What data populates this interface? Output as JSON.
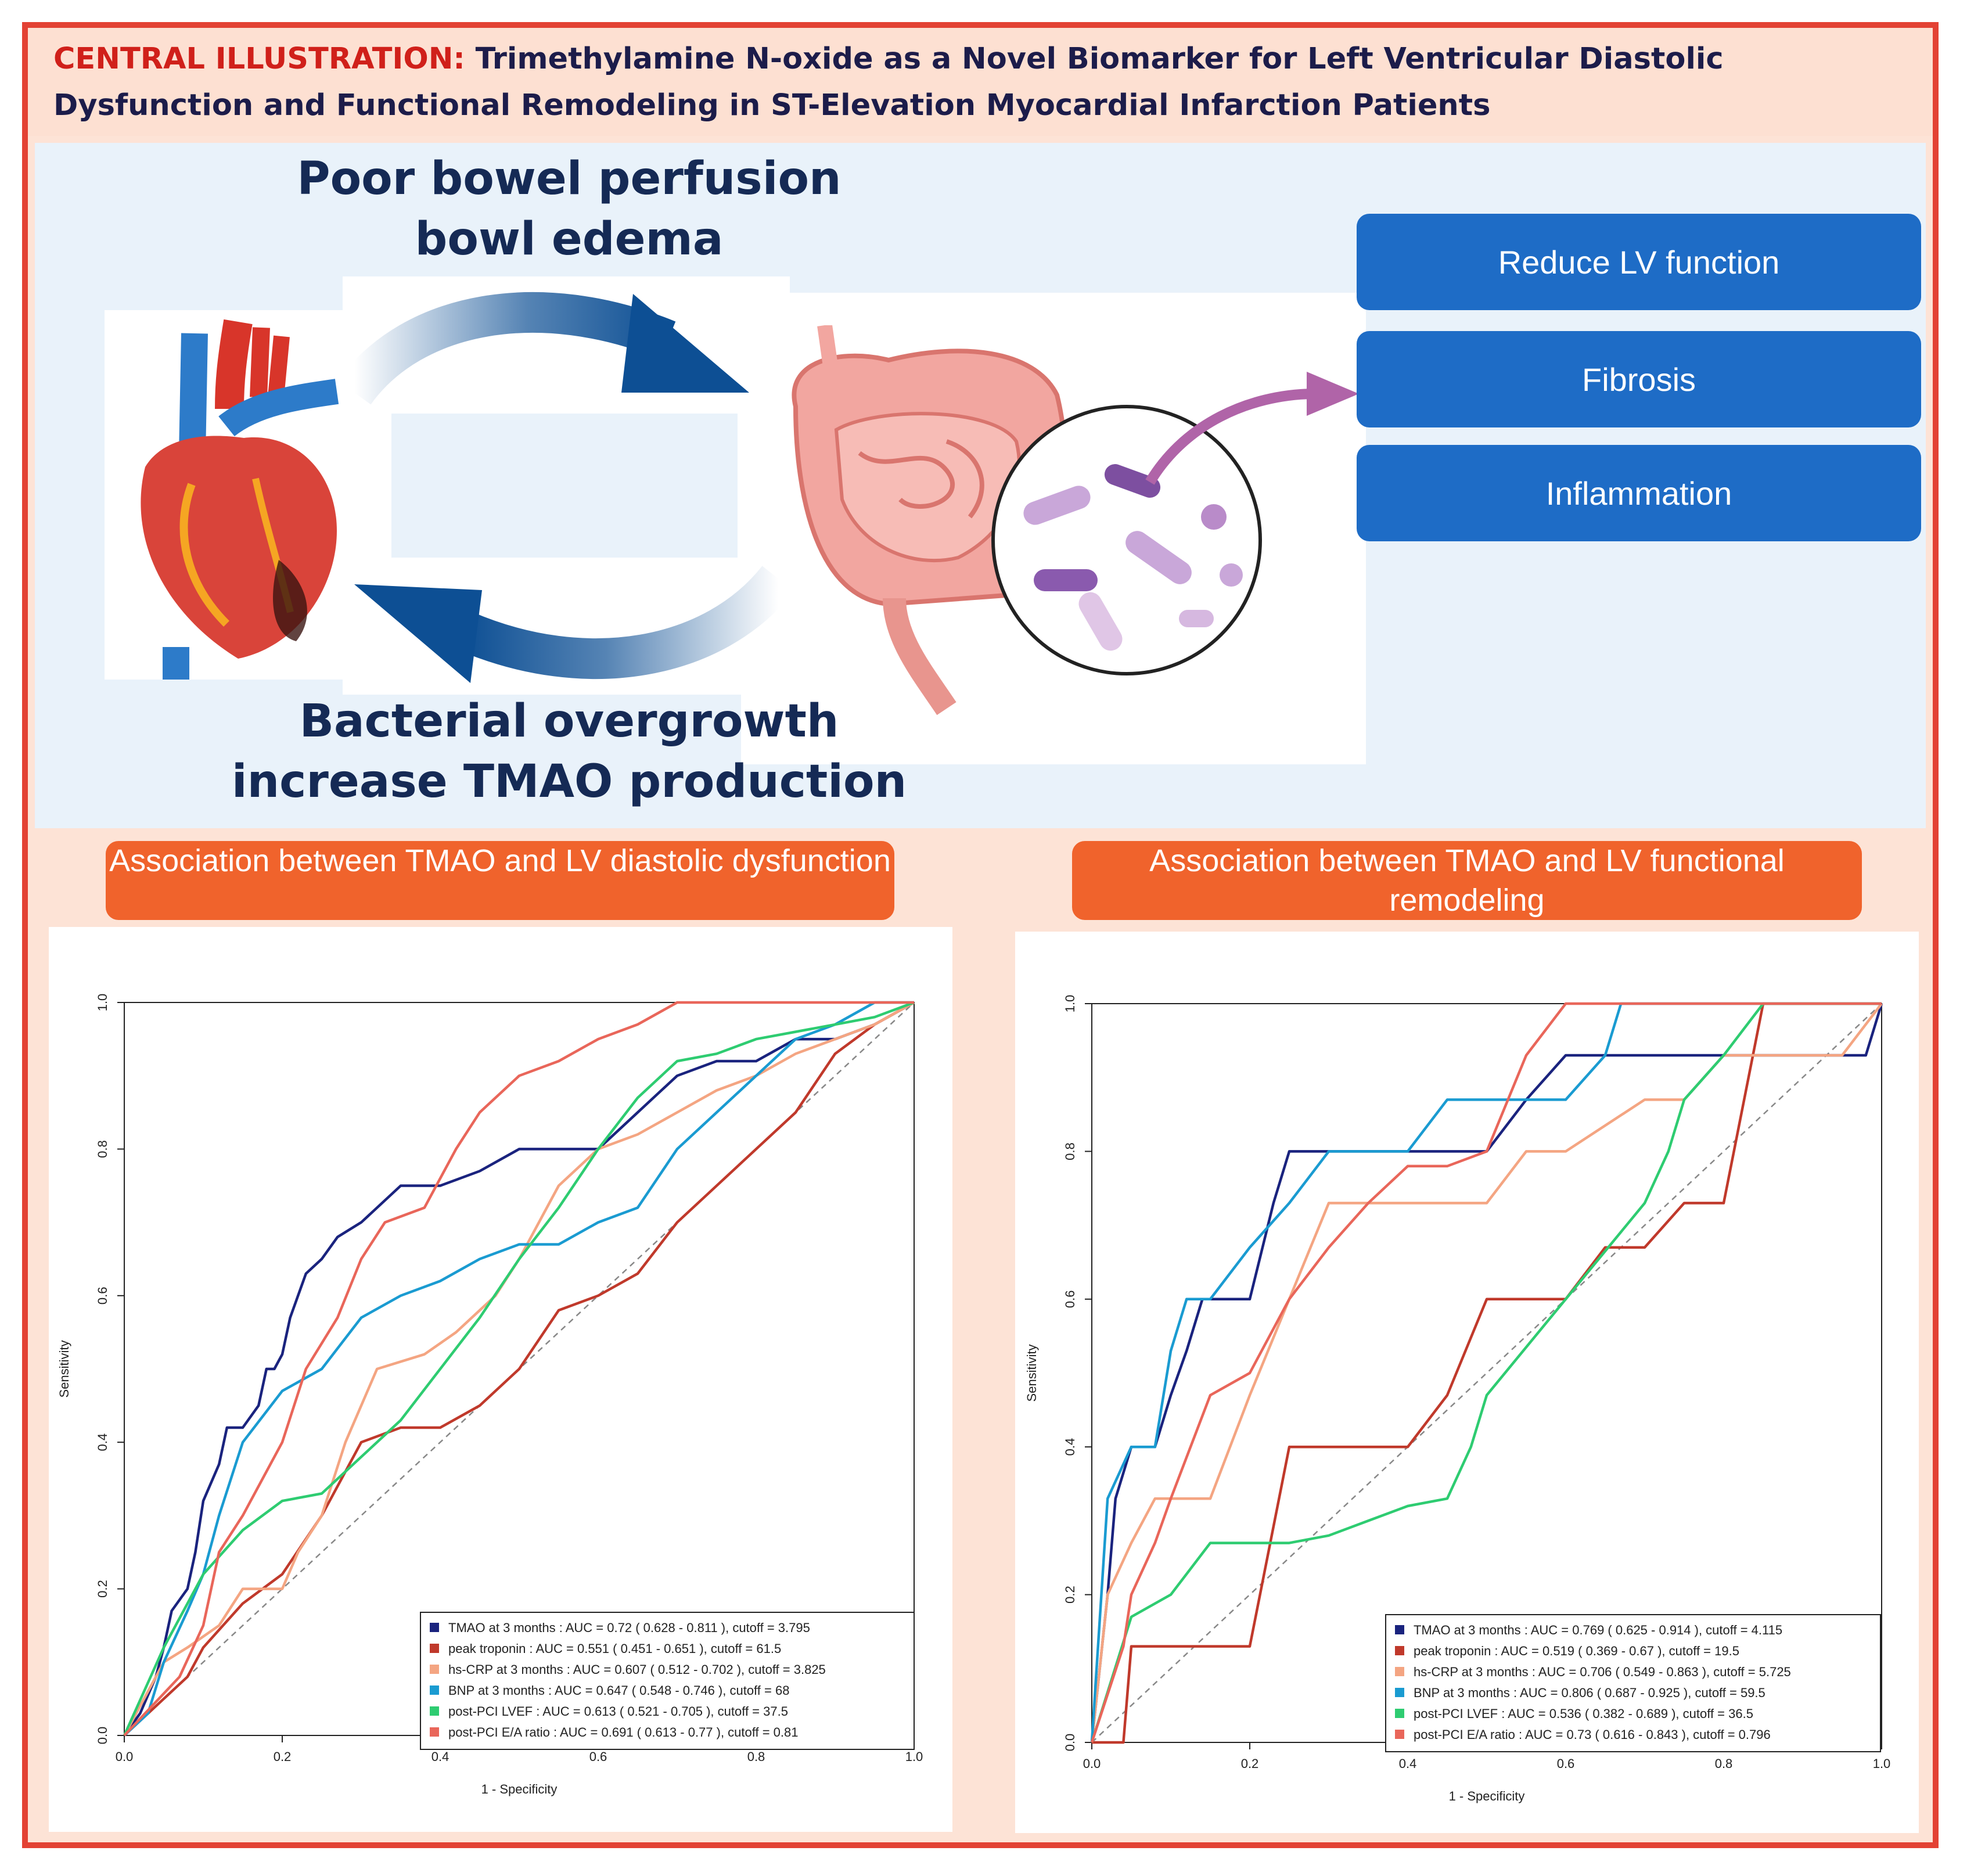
{
  "header": {
    "lead": "CENTRAL ILLUSTRATION:",
    "title": "Trimethylamine N-oxide as a Novel Biomarker for Left Ventricular Diastolic Dysfunction and Functional Remodeling in ST-Elevation Myocardial Infarction Patients"
  },
  "diagram": {
    "top_label_line1": "Poor bowel perfusion",
    "top_label_line2": "bowl edema",
    "bottom_label_line1": "Bacterial overgrowth",
    "bottom_label_line2": "increase TMAO production",
    "effects": [
      "Reduce LV function",
      "Fibrosis",
      "Inflammation"
    ],
    "colors": {
      "arrow": "#0d4f94",
      "effect_box": "#1e6cc6",
      "bacteria_arrow": "#b064a8"
    }
  },
  "panels": {
    "left_title": "Association between TMAO and LV diastolic dysfunction",
    "right_title": "Association between TMAO and LV functional remodeling"
  },
  "chart_data": [
    {
      "type": "line",
      "title": "",
      "xlabel": "1 - Specificity",
      "ylabel": "Sensitivity",
      "xlim": [
        0,
        1
      ],
      "ylim": [
        0,
        1
      ],
      "x_ticks": [
        "0.0",
        "0.2",
        "0.4",
        "0.6",
        "0.8",
        "1.0"
      ],
      "y_ticks": [
        "0.0",
        "0.2",
        "0.4",
        "0.6",
        "0.8",
        "1.0"
      ],
      "legend_position": "bottom-right",
      "series": [
        {
          "name": "TMAO at 3 months : AUC = 0.72  ( 0.628 - 0.811 ),  cutoff = 3.795",
          "color": "#1a237e",
          "x": [
            0,
            0.02,
            0.04,
            0.05,
            0.06,
            0.08,
            0.09,
            0.1,
            0.12,
            0.13,
            0.15,
            0.17,
            0.18,
            0.19,
            0.2,
            0.21,
            0.22,
            0.23,
            0.25,
            0.27,
            0.3,
            0.32,
            0.35,
            0.4,
            0.45,
            0.5,
            0.55,
            0.6,
            0.62,
            0.65,
            0.7,
            0.75,
            0.8,
            0.85,
            0.9,
            0.95,
            1.0
          ],
          "y": [
            0,
            0.03,
            0.08,
            0.12,
            0.17,
            0.2,
            0.25,
            0.32,
            0.37,
            0.42,
            0.42,
            0.45,
            0.5,
            0.5,
            0.52,
            0.57,
            0.6,
            0.63,
            0.65,
            0.68,
            0.7,
            0.72,
            0.75,
            0.75,
            0.77,
            0.8,
            0.8,
            0.8,
            0.82,
            0.85,
            0.9,
            0.92,
            0.92,
            0.95,
            0.95,
            0.97,
            1.0
          ]
        },
        {
          "name": "peak troponin : AUC = 0.551  ( 0.451 - 0.651 ),  cutoff = 61.5",
          "color": "#c0392b",
          "x": [
            0,
            0.05,
            0.08,
            0.1,
            0.15,
            0.2,
            0.25,
            0.3,
            0.35,
            0.4,
            0.45,
            0.5,
            0.55,
            0.6,
            0.65,
            0.7,
            0.75,
            0.8,
            0.85,
            0.9,
            0.95,
            1.0
          ],
          "y": [
            0,
            0.05,
            0.08,
            0.12,
            0.18,
            0.22,
            0.3,
            0.4,
            0.42,
            0.42,
            0.45,
            0.5,
            0.58,
            0.6,
            0.63,
            0.7,
            0.75,
            0.8,
            0.85,
            0.93,
            0.97,
            1.0
          ]
        },
        {
          "name": "hs-CRP at 3 months : AUC = 0.607  ( 0.512 - 0.702 ),  cutoff = 3.825",
          "color": "#f4a582",
          "x": [
            0,
            0.05,
            0.08,
            0.12,
            0.15,
            0.2,
            0.22,
            0.25,
            0.28,
            0.32,
            0.38,
            0.42,
            0.47,
            0.5,
            0.55,
            0.6,
            0.65,
            0.7,
            0.75,
            0.8,
            0.85,
            0.9,
            0.95,
            1.0
          ],
          "y": [
            0,
            0.1,
            0.12,
            0.15,
            0.2,
            0.2,
            0.25,
            0.3,
            0.4,
            0.5,
            0.52,
            0.55,
            0.6,
            0.65,
            0.75,
            0.8,
            0.82,
            0.85,
            0.88,
            0.9,
            0.93,
            0.95,
            0.97,
            1.0
          ]
        },
        {
          "name": "BNP at 3 months : AUC = 0.647  ( 0.548 - 0.746 ),  cutoff = 68",
          "color": "#1a9bd1",
          "x": [
            0,
            0.03,
            0.05,
            0.08,
            0.1,
            0.12,
            0.15,
            0.2,
            0.25,
            0.3,
            0.35,
            0.4,
            0.45,
            0.5,
            0.55,
            0.6,
            0.65,
            0.7,
            0.75,
            0.8,
            0.85,
            0.9,
            0.95,
            1.0
          ],
          "y": [
            0,
            0.03,
            0.1,
            0.17,
            0.22,
            0.3,
            0.4,
            0.47,
            0.5,
            0.57,
            0.6,
            0.62,
            0.65,
            0.67,
            0.67,
            0.7,
            0.72,
            0.8,
            0.85,
            0.9,
            0.95,
            0.97,
            1.0,
            1.0
          ]
        },
        {
          "name": "post-PCI LVEF : AUC = 0.613  ( 0.521 - 0.705 ),  cutoff = 37.5",
          "color": "#2ecc71",
          "x": [
            0,
            0.05,
            0.1,
            0.15,
            0.2,
            0.25,
            0.3,
            0.35,
            0.4,
            0.45,
            0.5,
            0.55,
            0.6,
            0.65,
            0.7,
            0.75,
            0.8,
            0.85,
            0.9,
            0.95,
            1.0
          ],
          "y": [
            0,
            0.12,
            0.22,
            0.28,
            0.32,
            0.33,
            0.38,
            0.43,
            0.5,
            0.57,
            0.65,
            0.72,
            0.8,
            0.87,
            0.92,
            0.93,
            0.95,
            0.96,
            0.97,
            0.98,
            1.0
          ]
        },
        {
          "name": "post-PCI E/A ratio : AUC = 0.691  ( 0.613 - 0.77 ),  cutoff = 0.81",
          "color": "#e9665a",
          "x": [
            0,
            0.07,
            0.1,
            0.12,
            0.15,
            0.2,
            0.23,
            0.27,
            0.3,
            0.33,
            0.38,
            0.42,
            0.45,
            0.5,
            0.55,
            0.6,
            0.65,
            0.7,
            0.75,
            0.8,
            0.85,
            0.9,
            0.95,
            1.0
          ],
          "y": [
            0,
            0.08,
            0.15,
            0.25,
            0.3,
            0.4,
            0.5,
            0.57,
            0.65,
            0.7,
            0.72,
            0.8,
            0.85,
            0.9,
            0.92,
            0.95,
            0.97,
            1.0,
            1.0,
            1.0,
            1.0,
            1.0,
            1.0,
            1.0
          ]
        }
      ]
    },
    {
      "type": "line",
      "title": "",
      "xlabel": "1 - Specificity",
      "ylabel": "Sensitivity",
      "xlim": [
        0,
        1
      ],
      "ylim": [
        0,
        1
      ],
      "x_ticks": [
        "0.0",
        "0.2",
        "0.4",
        "0.6",
        "0.8",
        "1.0"
      ],
      "y_ticks": [
        "0.0",
        "0.2",
        "0.4",
        "0.6",
        "0.8",
        "1.0"
      ],
      "legend_position": "bottom-right",
      "series": [
        {
          "name": "TMAO at 3 months : AUC = 0.769  ( 0.625 - 0.914 ),  cutoff = 4.115",
          "color": "#1a237e",
          "x": [
            0,
            0.02,
            0.03,
            0.05,
            0.08,
            0.1,
            0.12,
            0.14,
            0.16,
            0.2,
            0.23,
            0.25,
            0.28,
            0.3,
            0.4,
            0.5,
            0.55,
            0.6,
            0.65,
            0.7,
            0.8,
            0.85,
            0.9,
            0.98,
            1.0
          ],
          "y": [
            0,
            0.2,
            0.33,
            0.4,
            0.4,
            0.47,
            0.53,
            0.6,
            0.6,
            0.6,
            0.73,
            0.8,
            0.8,
            0.8,
            0.8,
            0.8,
            0.87,
            0.93,
            0.93,
            0.93,
            0.93,
            0.93,
            0.93,
            0.93,
            1.0
          ]
        },
        {
          "name": "peak troponin : AUC = 0.519  ( 0.369 - 0.67 ),  cutoff = 19.5",
          "color": "#c0392b",
          "x": [
            0,
            0.04,
            0.05,
            0.1,
            0.15,
            0.2,
            0.25,
            0.3,
            0.4,
            0.45,
            0.5,
            0.55,
            0.6,
            0.65,
            0.7,
            0.75,
            0.8,
            0.85,
            0.9,
            0.95,
            1.0
          ],
          "y": [
            0,
            0.0,
            0.13,
            0.13,
            0.13,
            0.13,
            0.4,
            0.4,
            0.4,
            0.47,
            0.6,
            0.6,
            0.6,
            0.67,
            0.67,
            0.73,
            0.73,
            1.0,
            1.0,
            1.0,
            1.0
          ]
        },
        {
          "name": "hs-CRP at 3 months : AUC = 0.706  ( 0.549 - 0.863 ),  cutoff = 5.725",
          "color": "#f4a582",
          "x": [
            0,
            0.02,
            0.05,
            0.08,
            0.1,
            0.15,
            0.2,
            0.25,
            0.3,
            0.4,
            0.5,
            0.55,
            0.6,
            0.7,
            0.75,
            0.8,
            0.85,
            0.9,
            0.95,
            1.0
          ],
          "y": [
            0,
            0.2,
            0.27,
            0.33,
            0.33,
            0.33,
            0.47,
            0.6,
            0.73,
            0.73,
            0.73,
            0.8,
            0.8,
            0.87,
            0.87,
            0.93,
            0.93,
            0.93,
            0.93,
            1.0
          ]
        },
        {
          "name": "BNP at 3 months : AUC = 0.806  ( 0.687 - 0.925 ),  cutoff = 59.5",
          "color": "#1a9bd1",
          "x": [
            0,
            0.02,
            0.05,
            0.08,
            0.1,
            0.12,
            0.15,
            0.2,
            0.25,
            0.3,
            0.4,
            0.45,
            0.5,
            0.6,
            0.65,
            0.67,
            0.7,
            0.8,
            0.9,
            1.0
          ],
          "y": [
            0,
            0.33,
            0.4,
            0.4,
            0.53,
            0.6,
            0.6,
            0.67,
            0.73,
            0.8,
            0.8,
            0.87,
            0.87,
            0.87,
            0.93,
            1.0,
            1.0,
            1.0,
            1.0,
            1.0
          ]
        },
        {
          "name": "post-PCI LVEF : AUC = 0.536  ( 0.382 - 0.689 ),  cutoff = 36.5",
          "color": "#2ecc71",
          "x": [
            0,
            0.05,
            0.1,
            0.15,
            0.2,
            0.25,
            0.3,
            0.35,
            0.4,
            0.45,
            0.48,
            0.5,
            0.6,
            0.7,
            0.73,
            0.75,
            0.8,
            0.85,
            0.9,
            0.95,
            1.0
          ],
          "y": [
            0,
            0.17,
            0.2,
            0.27,
            0.27,
            0.27,
            0.28,
            0.3,
            0.32,
            0.33,
            0.4,
            0.47,
            0.6,
            0.73,
            0.8,
            0.87,
            0.93,
            1.0,
            1.0,
            1.0,
            1.0
          ]
        },
        {
          "name": "post-PCI E/A ratio : AUC = 0.73  ( 0.616 - 0.843 ),  cutoff = 0.796",
          "color": "#e9665a",
          "x": [
            0,
            0.04,
            0.05,
            0.08,
            0.1,
            0.15,
            0.2,
            0.25,
            0.3,
            0.35,
            0.4,
            0.45,
            0.5,
            0.55,
            0.6,
            0.65,
            0.7,
            0.8,
            0.9,
            1.0
          ],
          "y": [
            0,
            0.13,
            0.2,
            0.27,
            0.33,
            0.47,
            0.5,
            0.6,
            0.67,
            0.73,
            0.78,
            0.78,
            0.8,
            0.93,
            1.0,
            1.0,
            1.0,
            1.0,
            1.0,
            1.0
          ]
        }
      ]
    }
  ]
}
